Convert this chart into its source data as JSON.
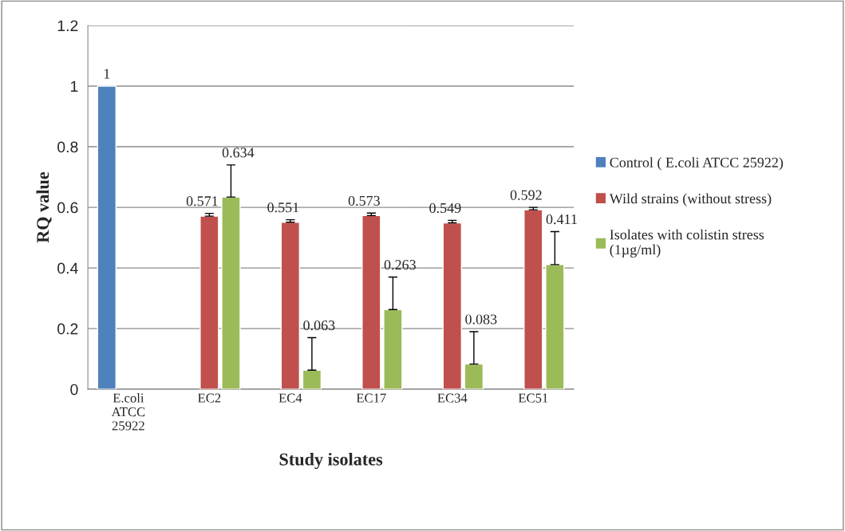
{
  "chart_data": {
    "type": "bar",
    "xlabel": "Study isolates",
    "ylabel": "RQ value",
    "categories": [
      "E.coli\nATCC\n25922",
      "EC2",
      "EC4",
      "EC17",
      "EC34",
      "EC51"
    ],
    "series": [
      {
        "name": "Control ( E.coli ATCC 25922)",
        "color": "#4f81bd",
        "values": [
          1,
          null,
          null,
          null,
          null,
          null
        ]
      },
      {
        "name": "Wild strains (without stress)",
        "color": "#c0504d",
        "values": [
          null,
          0.571,
          0.551,
          0.573,
          0.549,
          0.592
        ],
        "errors": [
          null,
          [
            0.571,
            0.58
          ],
          [
            0.551,
            0.559
          ],
          [
            0.573,
            0.581
          ],
          [
            0.549,
            0.557
          ],
          [
            0.592,
            0.6
          ]
        ]
      },
      {
        "name": "Isolates with colistin stress\n(1µg/ml)",
        "color": "#9bbb59",
        "values": [
          null,
          0.634,
          0.063,
          0.263,
          0.083,
          0.411
        ],
        "errors": [
          null,
          [
            0.634,
            0.74
          ],
          [
            0.063,
            0.17
          ],
          [
            0.263,
            0.37
          ],
          [
            0.083,
            0.19
          ],
          [
            0.411,
            0.52
          ]
        ]
      }
    ],
    "ylim": [
      0,
      1.2
    ],
    "yticks": [
      0,
      0.2,
      0.4,
      0.6,
      0.8,
      1,
      1.2
    ],
    "grid": "y",
    "legend": "right",
    "data_labels": true
  }
}
